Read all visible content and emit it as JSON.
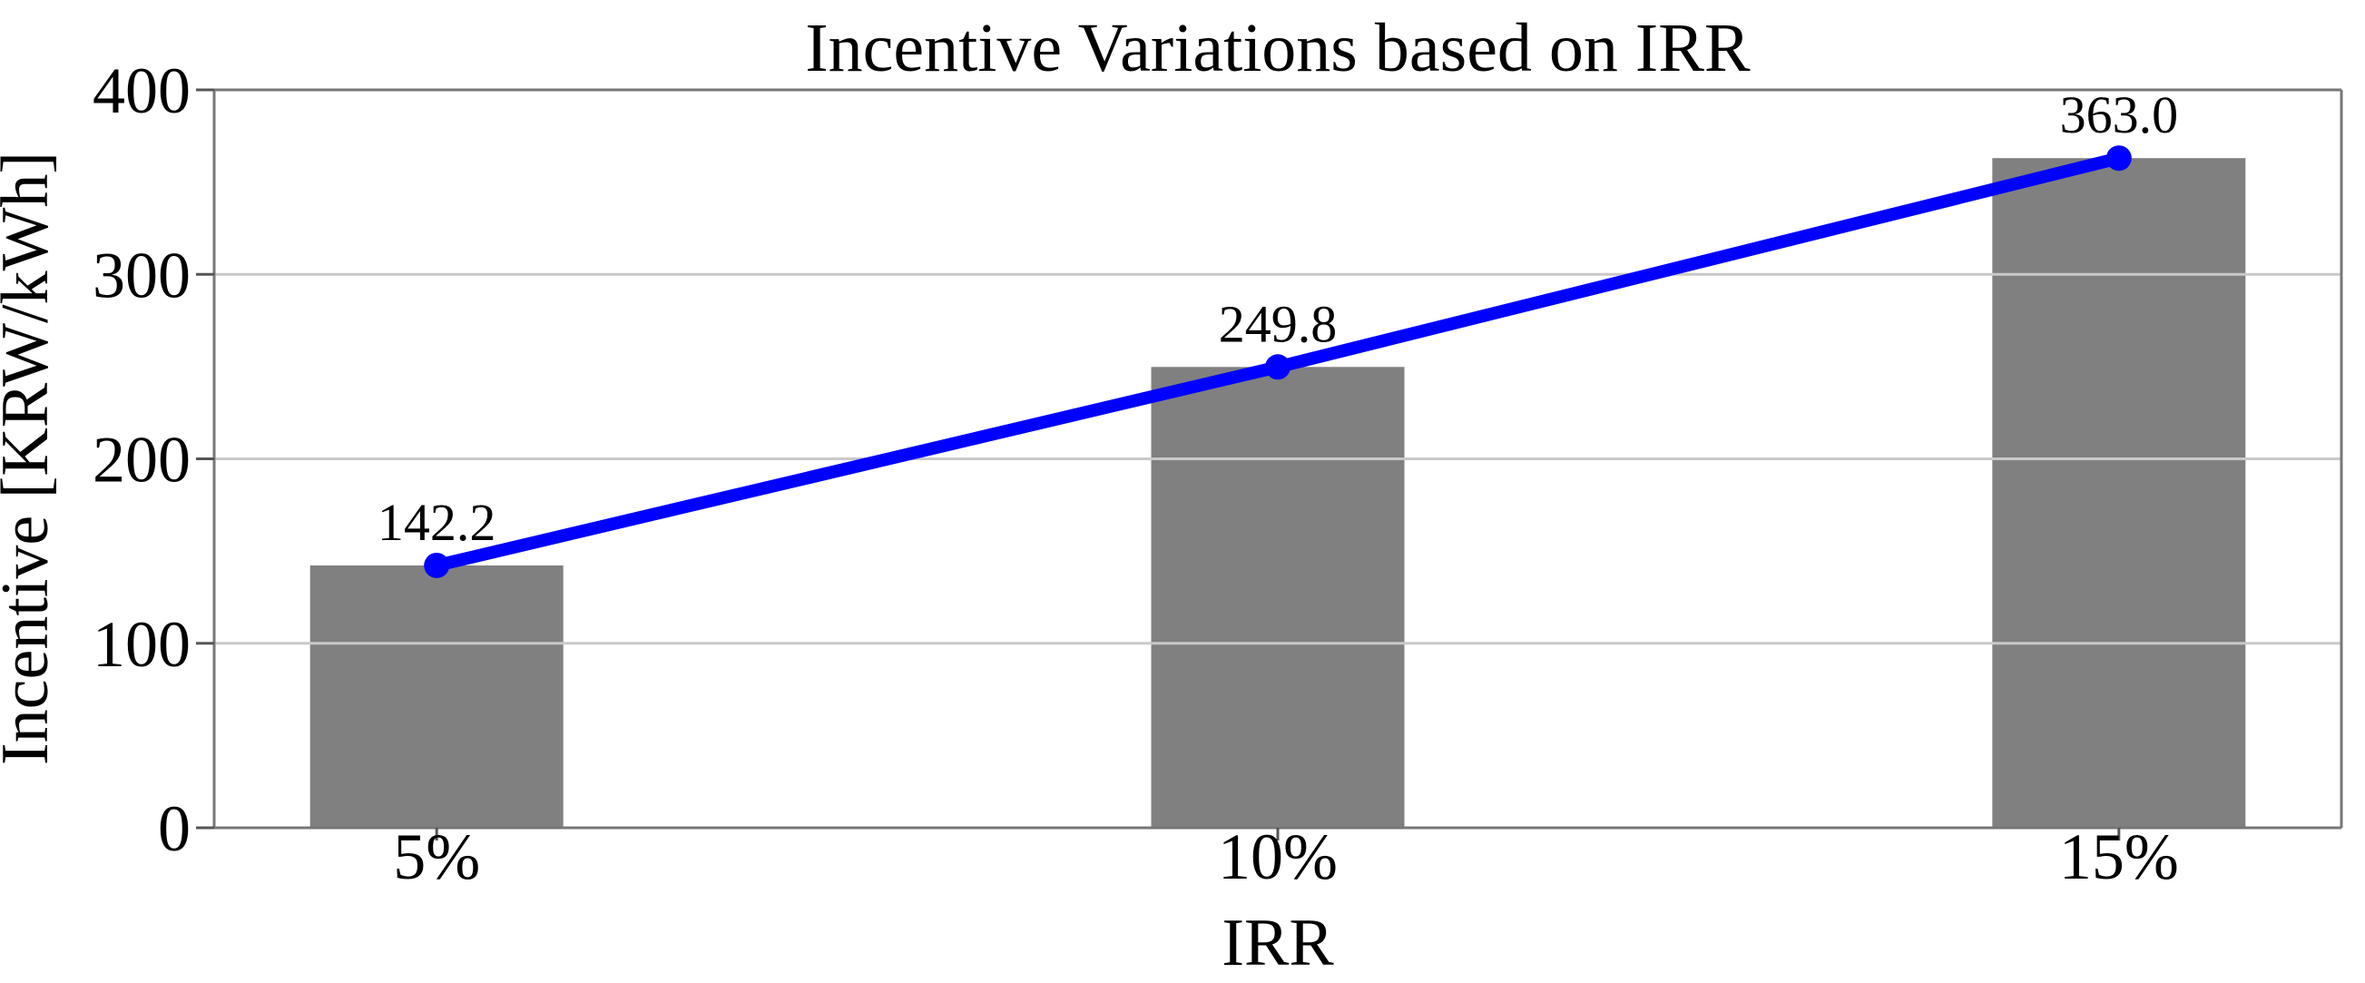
{
  "chart_data": {
    "type": "bar",
    "title": "Incentive Variations based on IRR",
    "xlabel": "IRR",
    "ylabel": "Incentive [KRW/kWh]",
    "categories": [
      "5%",
      "10%",
      "15%"
    ],
    "values": [
      142.2,
      249.8,
      363.0
    ],
    "value_labels": [
      "142.2",
      "249.8",
      "363.0"
    ],
    "series": [
      {
        "name": "incentive-bars",
        "type": "bar",
        "values": [
          142.2,
          249.8,
          363.0
        ]
      },
      {
        "name": "incentive-trend-line",
        "type": "line",
        "values": [
          142.2,
          249.8,
          363.0
        ]
      }
    ],
    "ylim": [
      0,
      400
    ],
    "yticks": [
      0,
      100,
      200,
      300,
      400
    ],
    "grid": "horizontal",
    "legend": "none",
    "colors": {
      "bar": "#808080",
      "line": "#0000ff",
      "marker": "#0000ff",
      "grid": "#c9c9c9",
      "spine": "#777777",
      "tick": "#555555",
      "text": "#000000",
      "background": "#ffffff"
    }
  }
}
